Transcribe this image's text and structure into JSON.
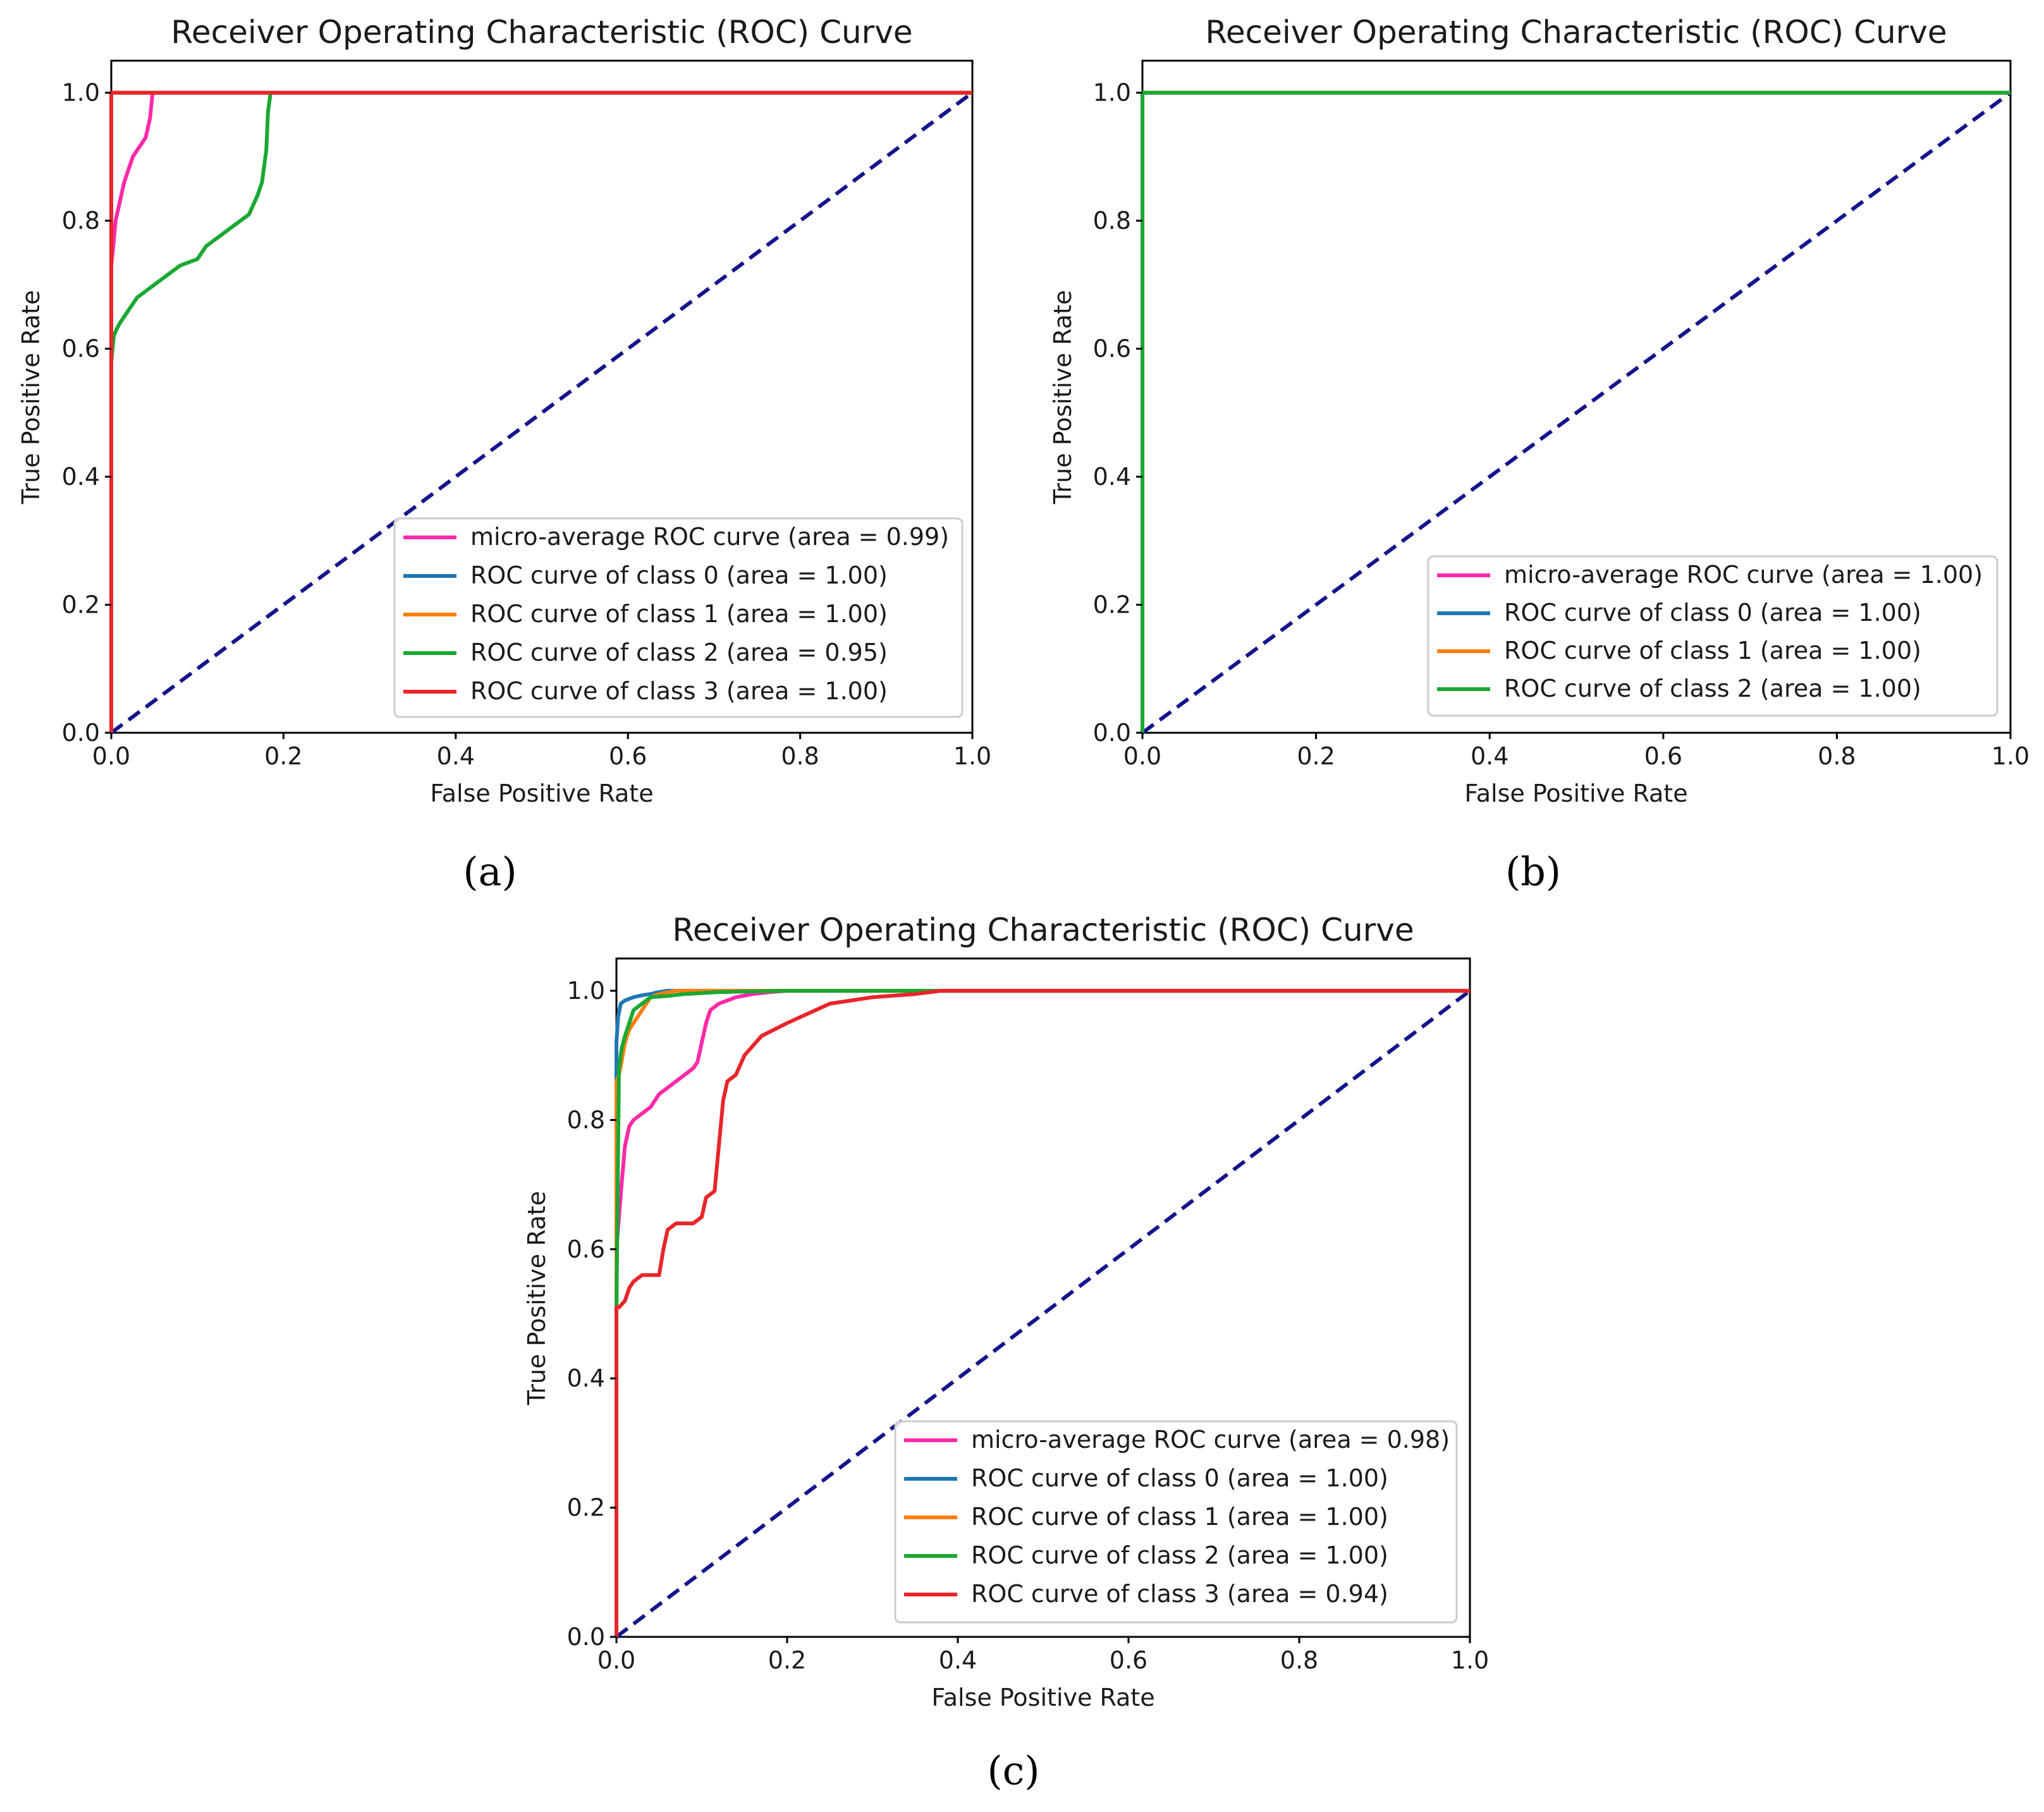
{
  "chart_data": [
    {
      "type": "line",
      "panel": "a",
      "caption": "(a)",
      "title": "Receiver Operating Characteristic (ROC) Curve",
      "xlabel": "False Positive Rate",
      "ylabel": "True Positive Rate",
      "xlim": [
        0.0,
        1.0
      ],
      "ylim": [
        0.0,
        1.05
      ],
      "xticks": [
        "0.0",
        "0.2",
        "0.4",
        "0.6",
        "0.8",
        "1.0"
      ],
      "yticks": [
        "0.0",
        "0.2",
        "0.4",
        "0.6",
        "0.8",
        "1.0"
      ],
      "legend_position": "lower-right",
      "series": [
        {
          "name": "micro-average ROC curve (area = 0.99)",
          "color": "#ff2aa8",
          "x": [
            0.0,
            0.0,
            0.003,
            0.005,
            0.01,
            0.015,
            0.02,
            0.025,
            0.03,
            0.04,
            0.045,
            0.048,
            1.0
          ],
          "y": [
            0.0,
            0.73,
            0.77,
            0.8,
            0.83,
            0.86,
            0.88,
            0.9,
            0.91,
            0.93,
            0.96,
            1.0,
            1.0
          ]
        },
        {
          "name": "ROC curve of class 0 (area = 1.00)",
          "color": "#1f77b4",
          "x": [
            0.0,
            0.0,
            1.0
          ],
          "y": [
            0.0,
            1.0,
            1.0
          ]
        },
        {
          "name": "ROC curve of class 1 (area = 1.00)",
          "color": "#ff7f0e",
          "x": [
            0.0,
            0.0,
            1.0
          ],
          "y": [
            0.0,
            1.0,
            1.0
          ]
        },
        {
          "name": "ROC curve of class 2 (area = 0.95)",
          "color": "#1aa832",
          "x": [
            0.0,
            0.0,
            0.003,
            0.006,
            0.01,
            0.02,
            0.03,
            0.04,
            0.05,
            0.06,
            0.08,
            0.1,
            0.11,
            0.12,
            0.14,
            0.16,
            0.17,
            0.175,
            0.18,
            0.182,
            0.185,
            1.0
          ],
          "y": [
            0.0,
            0.58,
            0.62,
            0.63,
            0.64,
            0.66,
            0.68,
            0.69,
            0.7,
            0.71,
            0.73,
            0.74,
            0.76,
            0.77,
            0.79,
            0.81,
            0.84,
            0.86,
            0.91,
            0.97,
            1.0,
            1.0
          ]
        },
        {
          "name": "ROC curve of class 3 (area = 1.00)",
          "color": "#e8262a",
          "x": [
            0.0,
            0.0,
            1.0
          ],
          "y": [
            0.0,
            1.0,
            1.0
          ]
        }
      ],
      "reference_line": {
        "color": "#14148c",
        "x": [
          0.0,
          1.0
        ],
        "y": [
          0.0,
          1.0
        ]
      }
    },
    {
      "type": "line",
      "panel": "b",
      "caption": "(b)",
      "title": "Receiver Operating Characteristic (ROC) Curve",
      "xlabel": "False Positive Rate",
      "ylabel": "True Positive Rate",
      "xlim": [
        0.0,
        1.0
      ],
      "ylim": [
        0.0,
        1.05
      ],
      "xticks": [
        "0.0",
        "0.2",
        "0.4",
        "0.6",
        "0.8",
        "1.0"
      ],
      "yticks": [
        "0.0",
        "0.2",
        "0.4",
        "0.6",
        "0.8",
        "1.0"
      ],
      "legend_position": "lower-right",
      "series": [
        {
          "name": "micro-average ROC curve (area = 1.00)",
          "color": "#ff2aa8",
          "x": [
            0.0,
            0.0,
            1.0
          ],
          "y": [
            0.0,
            1.0,
            1.0
          ]
        },
        {
          "name": "ROC curve of class 0 (area = 1.00)",
          "color": "#1f77b4",
          "x": [
            0.0,
            0.0,
            1.0
          ],
          "y": [
            0.0,
            1.0,
            1.0
          ]
        },
        {
          "name": "ROC curve of class 1 (area = 1.00)",
          "color": "#ff7f0e",
          "x": [
            0.0,
            0.0,
            1.0
          ],
          "y": [
            0.0,
            1.0,
            1.0
          ]
        },
        {
          "name": "ROC curve of class 2 (area = 1.00)",
          "color": "#1aa832",
          "x": [
            0.0,
            0.0,
            1.0
          ],
          "y": [
            0.0,
            1.0,
            1.0
          ]
        }
      ],
      "reference_line": {
        "color": "#14148c",
        "x": [
          0.0,
          1.0
        ],
        "y": [
          0.0,
          1.0
        ]
      }
    },
    {
      "type": "line",
      "panel": "c",
      "caption": "(c)",
      "title": "Receiver Operating Characteristic (ROC) Curve",
      "xlabel": "False Positive Rate",
      "ylabel": "True Positive Rate",
      "xlim": [
        0.0,
        1.0
      ],
      "ylim": [
        0.0,
        1.05
      ],
      "xticks": [
        "0.0",
        "0.2",
        "0.4",
        "0.6",
        "0.8",
        "1.0"
      ],
      "yticks": [
        "0.0",
        "0.2",
        "0.4",
        "0.6",
        "0.8",
        "1.0"
      ],
      "legend_position": "lower-right",
      "series": [
        {
          "name": "micro-average ROC curve (area = 0.98)",
          "color": "#ff2aa8",
          "x": [
            0.0,
            0.0,
            0.003,
            0.006,
            0.01,
            0.015,
            0.02,
            0.03,
            0.04,
            0.05,
            0.06,
            0.07,
            0.08,
            0.09,
            0.095,
            0.1,
            0.105,
            0.11,
            0.12,
            0.14,
            0.16,
            0.18,
            0.2,
            1.0
          ],
          "y": [
            0.0,
            0.6,
            0.65,
            0.7,
            0.76,
            0.79,
            0.8,
            0.81,
            0.82,
            0.84,
            0.85,
            0.86,
            0.87,
            0.88,
            0.89,
            0.92,
            0.95,
            0.97,
            0.98,
            0.99,
            0.995,
            0.998,
            1.0,
            1.0
          ]
        },
        {
          "name": "ROC curve of class 0 (area = 1.00)",
          "color": "#1f77b4",
          "x": [
            0.0,
            0.0,
            0.002,
            0.005,
            0.01,
            0.02,
            0.03,
            0.04,
            0.05,
            0.06,
            1.0
          ],
          "y": [
            0.0,
            0.92,
            0.96,
            0.98,
            0.985,
            0.99,
            0.993,
            0.995,
            0.998,
            1.0,
            1.0
          ]
        },
        {
          "name": "ROC curve of class 1 (area = 1.00)",
          "color": "#ff7f0e",
          "x": [
            0.0,
            0.0,
            0.003,
            0.006,
            0.01,
            0.015,
            0.02,
            0.025,
            0.03,
            0.04,
            0.05,
            0.07,
            1.0
          ],
          "y": [
            0.0,
            0.86,
            0.87,
            0.89,
            0.92,
            0.94,
            0.95,
            0.96,
            0.97,
            0.99,
            0.995,
            1.0,
            1.0
          ]
        },
        {
          "name": "ROC curve of class 2 (area = 1.00)",
          "color": "#1aa832",
          "x": [
            0.0,
            0.0,
            0.003,
            0.006,
            0.01,
            0.015,
            0.02,
            0.03,
            0.04,
            0.06,
            0.08,
            0.12,
            0.2,
            1.0
          ],
          "y": [
            0.0,
            0.5,
            0.88,
            0.91,
            0.93,
            0.95,
            0.97,
            0.98,
            0.99,
            0.992,
            0.995,
            0.998,
            1.0,
            1.0
          ]
        },
        {
          "name": "ROC curve of class 3 (area = 0.94)",
          "color": "#e8262a",
          "x": [
            0.0,
            0.0,
            0.003,
            0.01,
            0.015,
            0.02,
            0.03,
            0.05,
            0.055,
            0.06,
            0.07,
            0.08,
            0.09,
            0.1,
            0.105,
            0.115,
            0.12,
            0.125,
            0.13,
            0.14,
            0.15,
            0.17,
            0.2,
            0.25,
            0.3,
            0.35,
            0.38,
            1.0
          ],
          "y": [
            0.0,
            0.51,
            0.51,
            0.52,
            0.54,
            0.55,
            0.56,
            0.56,
            0.6,
            0.63,
            0.64,
            0.64,
            0.64,
            0.65,
            0.68,
            0.69,
            0.76,
            0.83,
            0.86,
            0.87,
            0.9,
            0.93,
            0.95,
            0.98,
            0.99,
            0.995,
            1.0,
            1.0
          ]
        }
      ],
      "reference_line": {
        "color": "#14148c",
        "x": [
          0.0,
          1.0
        ],
        "y": [
          0.0,
          1.0
        ]
      }
    }
  ]
}
